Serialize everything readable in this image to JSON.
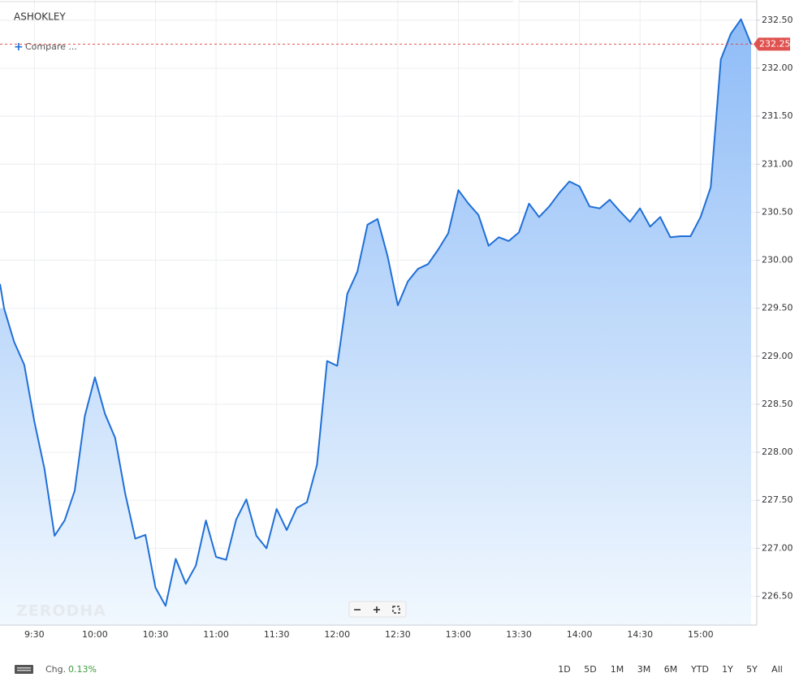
{
  "chart_data": {
    "type": "area",
    "title": "ASHOKLEY",
    "compare_label": "Compare ...",
    "watermark": "ZERODHA",
    "color": "#1f6fd6",
    "fill_top": "#8fbcf7",
    "fill_bottom": "#f1f8fe",
    "categories": [
      null,
      null,
      null,
      "9:30",
      null,
      null,
      null,
      null,
      null,
      "10:00",
      null,
      null,
      null,
      null,
      null,
      "10:30",
      null,
      null,
      null,
      null,
      null,
      "11:00",
      null,
      null,
      null,
      null,
      null,
      "11:30",
      null,
      null,
      null,
      null,
      null,
      "12:00",
      null,
      null,
      null,
      null,
      null,
      "12:30",
      null,
      null,
      null,
      null,
      null,
      "13:00",
      null,
      null,
      null,
      null,
      null,
      "13:30",
      null,
      null,
      null,
      null,
      null,
      "14:00",
      null,
      null,
      null,
      null,
      null,
      "14:30",
      null,
      null,
      null,
      null,
      null,
      "15:00",
      null,
      null,
      null,
      null,
      null
    ],
    "values": [
      229.5,
      229.15,
      228.91,
      228.32,
      227.83,
      227.13,
      227.29,
      227.6,
      228.38,
      228.78,
      228.4,
      228.15,
      227.57,
      227.1,
      227.14,
      226.59,
      226.4,
      226.89,
      226.63,
      226.82,
      227.29,
      226.91,
      226.88,
      227.3,
      227.51,
      227.13,
      227.0,
      227.41,
      227.19,
      227.42,
      227.48,
      227.87,
      228.95,
      228.9,
      229.65,
      229.88,
      230.37,
      230.43,
      230.04,
      229.53,
      229.78,
      229.91,
      229.96,
      230.11,
      230.28,
      230.73,
      230.59,
      230.47,
      230.15,
      230.24,
      230.2,
      230.29,
      230.59,
      230.45,
      230.56,
      230.7,
      230.82,
      230.77,
      230.56,
      230.54,
      230.63,
      230.51,
      230.4,
      230.54,
      230.35,
      230.45,
      230.24,
      230.25,
      230.25,
      230.45,
      230.76,
      232.09,
      232.36,
      232.51,
      232.25
    ],
    "ylim": [
      226.2,
      232.71
    ],
    "yticks": [
      {
        "value": 226.5,
        "label": "226.50"
      },
      {
        "value": 227,
        "label": "227.00"
      },
      {
        "value": 227.5,
        "label": "227.50"
      },
      {
        "value": 228,
        "label": "228.00"
      },
      {
        "value": 228.5,
        "label": "228.50"
      },
      {
        "value": 229,
        "label": "229.00"
      },
      {
        "value": 229.5,
        "label": "229.50"
      },
      {
        "value": 230,
        "label": "230.00"
      },
      {
        "value": 230.5,
        "label": "230.50"
      },
      {
        "value": 231,
        "label": "231.00"
      },
      {
        "value": 231.5,
        "label": "231.50"
      },
      {
        "value": 232,
        "label": "232.00"
      },
      {
        "value": 232.5,
        "label": "232.50"
      }
    ],
    "current_price": 232.25,
    "current_price_color": "#e0524f",
    "grid": true
  },
  "footer": {
    "change_label": "Chg.",
    "change_value": "0.13%",
    "ranges": [
      "1D",
      "5D",
      "1M",
      "3M",
      "6M",
      "YTD",
      "1Y",
      "5Y",
      "All"
    ]
  }
}
